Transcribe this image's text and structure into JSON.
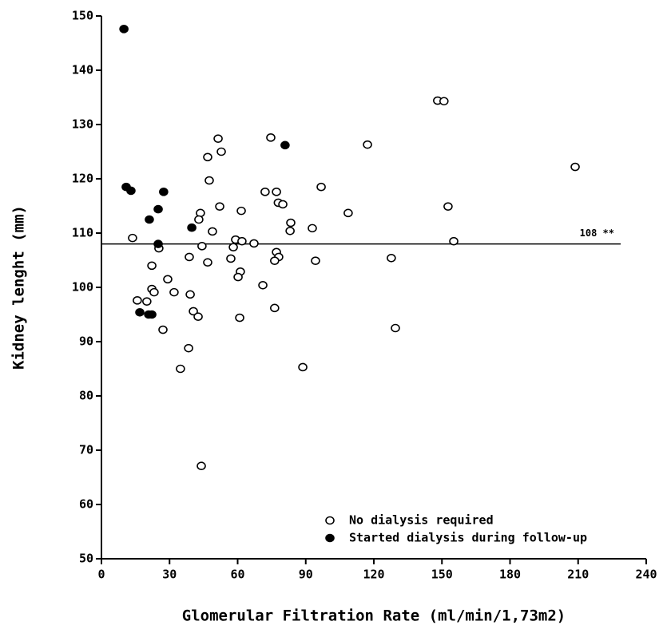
{
  "chart_data": {
    "type": "scatter",
    "x_label": "Glomerular Filtration Rate (ml/min/1,73m2)",
    "y_label": "Kidney lenght (mm)",
    "xlim": [
      0,
      240
    ],
    "ylim": [
      50,
      150
    ],
    "xticks": [
      0,
      30,
      60,
      90,
      120,
      150,
      180,
      210,
      240
    ],
    "yticks": [
      50,
      60,
      70,
      80,
      90,
      100,
      110,
      120,
      130,
      140,
      150
    ],
    "legend": "lower right",
    "hline": {
      "value": 108,
      "label": "108 **"
    },
    "series": [
      {
        "name": "No dialysis required",
        "color": "#000000",
        "marker": "open",
        "x": [
          148.1,
          150.9,
          117.2,
          208.7,
          51.4,
          74.6,
          52.8,
          46.8,
          47.5,
          72.1,
          77.1,
          96.8,
          77.9,
          79.9,
          52.1,
          61.6,
          43.6,
          42.9,
          108.7,
          152.7,
          83.4,
          83.1,
          92.9,
          48.9,
          13.7,
          59.1,
          61.9,
          67.2,
          155.2,
          44.3,
          25.3,
          58.1,
          77.1,
          38.7,
          57,
          78.1,
          127.7,
          76.3,
          46.8,
          94.3,
          22.2,
          61.2,
          60.2,
          29.2,
          71.1,
          22.2,
          23.2,
          32,
          39.1,
          15.8,
          20,
          76.3,
          40.5,
          42.6,
          60.9,
          129.5,
          27.1,
          38.4,
          88.7,
          34.8,
          44
        ],
        "values": [
          134.4,
          134.3,
          126.3,
          122.2,
          127.4,
          127.6,
          125,
          124,
          119.7,
          117.6,
          117.6,
          118.5,
          115.6,
          115.3,
          114.9,
          114.1,
          113.7,
          112.5,
          113.7,
          114.9,
          111.9,
          110.4,
          110.9,
          110.3,
          109.1,
          108.8,
          108.5,
          108.1,
          108.5,
          107.6,
          107.2,
          107.4,
          106.5,
          105.6,
          105.3,
          105.6,
          105.4,
          104.9,
          104.6,
          104.9,
          104,
          102.9,
          101.9,
          101.5,
          100.4,
          99.7,
          99.1,
          99.1,
          98.7,
          97.6,
          97.4,
          96.2,
          95.6,
          94.6,
          94.4,
          92.5,
          92.2,
          88.8,
          85.3,
          85,
          67.1
        ]
      },
      {
        "name": "Started dialysis during follow-up",
        "color": "#000000",
        "marker": "filled",
        "x": [
          9.9,
          10.9,
          13,
          27.4,
          25,
          21.1,
          39.8,
          80.9,
          25,
          16.9,
          20.8,
          22.2
        ],
        "values": [
          147.6,
          118.5,
          117.8,
          117.6,
          114.4,
          112.5,
          111,
          126.2,
          108,
          95.4,
          95,
          95
        ]
      }
    ]
  }
}
